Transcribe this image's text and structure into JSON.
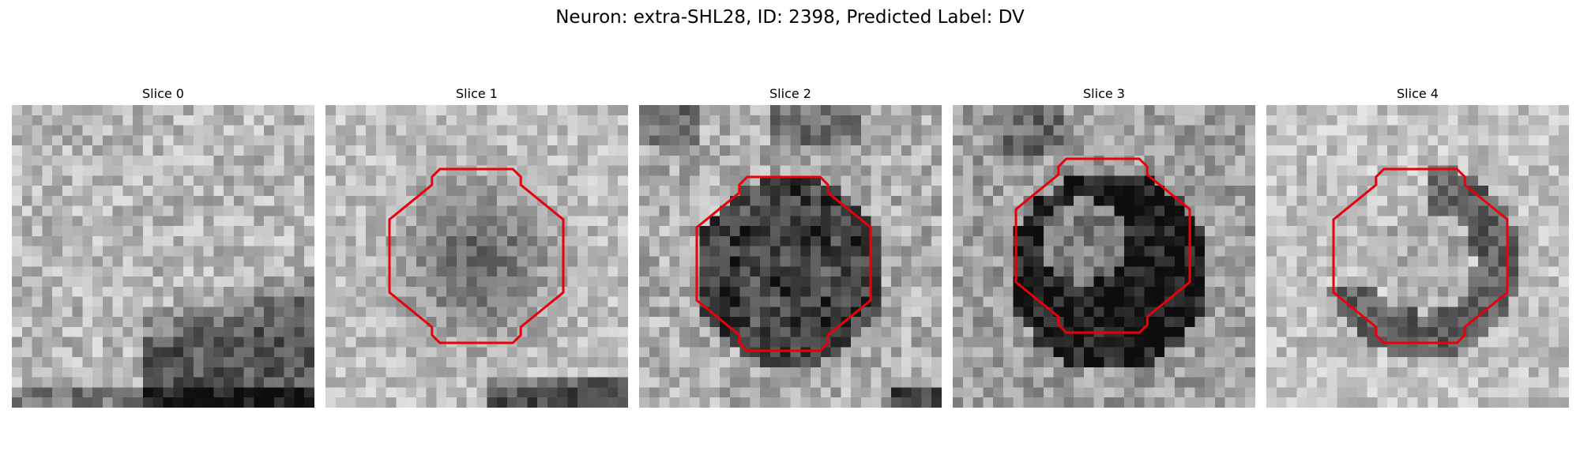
{
  "figure": {
    "title": "Neuron: extra-SHL28, ID: 2398, Predicted Label: DV"
  },
  "panels": [
    {
      "title": "Slice 0",
      "contour": false
    },
    {
      "title": "Slice 1",
      "contour": true
    },
    {
      "title": "Slice 2",
      "contour": true
    },
    {
      "title": "Slice 3",
      "contour": true
    },
    {
      "title": "Slice 4",
      "contour": true
    }
  ],
  "contour_color": "#e8000b"
}
